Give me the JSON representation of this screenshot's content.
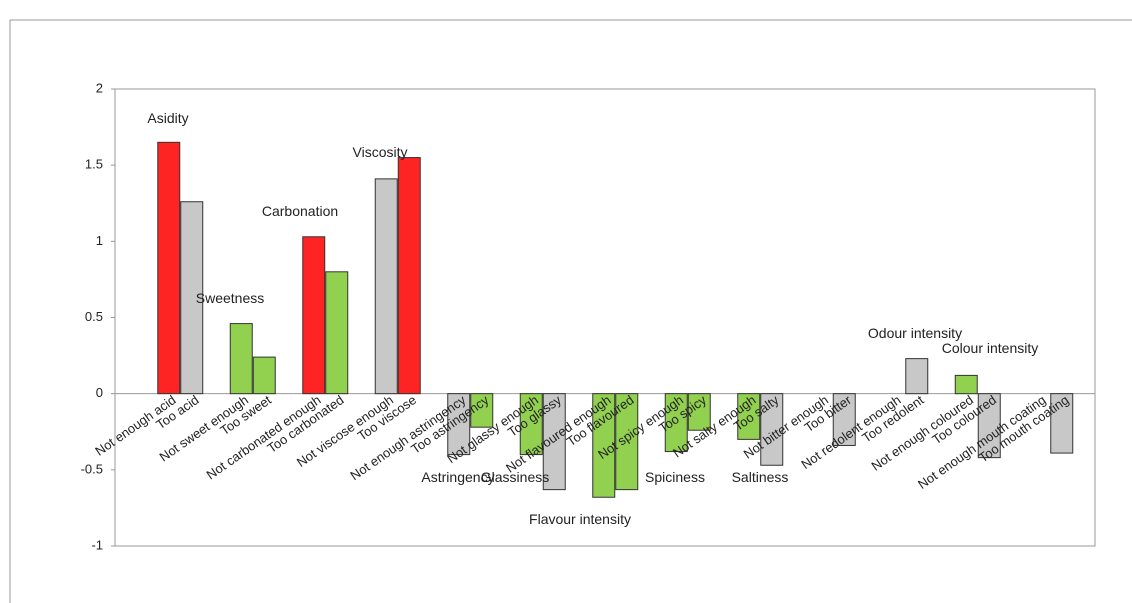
{
  "chart_data": {
    "type": "bar",
    "categories": [
      "Not enough acid",
      "Too acid",
      "Not sweet enough",
      "Too sweet",
      "Not  carbonated enough",
      "Too carbonated",
      "Not  viscose enough",
      "Too viscose",
      "Not enough  astringency",
      "Too astringency",
      "Not  glassy enough",
      "Too glassy",
      "Not  flavoured enough",
      "Too flavoured",
      "Not  spicy enough",
      "Too spicy",
      "Not  salty enough",
      "Too salty",
      "Not  bitter enough",
      "Too bitter",
      "Not  redolent enough",
      "Too redolent",
      "Not enough coloured",
      "Too coloured",
      "Not enough mouth coating",
      "Too mouth coating"
    ],
    "values": [
      1.65,
      1.26,
      0.46,
      0.24,
      1.03,
      0.8,
      1.41,
      1.55,
      -0.4,
      -0.22,
      -0.4,
      -0.63,
      -0.68,
      -0.63,
      -0.38,
      -0.24,
      -0.3,
      -0.47,
      0,
      -0.34,
      0,
      0.23,
      0.12,
      -0.42,
      0,
      -0.39
    ],
    "colors": [
      "#ff2424",
      "#c8c8c8",
      "#92d050",
      "#92d050",
      "#ff2424",
      "#92d050",
      "#c8c8c8",
      "#ff2424",
      "#c8c8c8",
      "#92d050",
      "#92d050",
      "#c8c8c8",
      "#92d050",
      "#92d050",
      "#92d050",
      "#92d050",
      "#92d050",
      "#c8c8c8",
      "#c8c8c8",
      "#c8c8c8",
      "#c8c8c8",
      "#c8c8c8",
      "#92d050",
      "#c8c8c8",
      "#c8c8c8",
      "#c8c8c8"
    ],
    "annotations": [
      "Asidity",
      "Sweetness",
      "Carbonation",
      "Viscosity",
      "Astringency",
      "Glassiness",
      "Flavour intensity",
      "Spiciness",
      "Saltiness",
      "Odour intensity",
      "Colour intensity"
    ],
    "ylim": [
      -1,
      2
    ],
    "yticks": [
      -1,
      -0.5,
      0,
      0.5,
      1,
      1.5,
      2
    ],
    "grid": false
  }
}
